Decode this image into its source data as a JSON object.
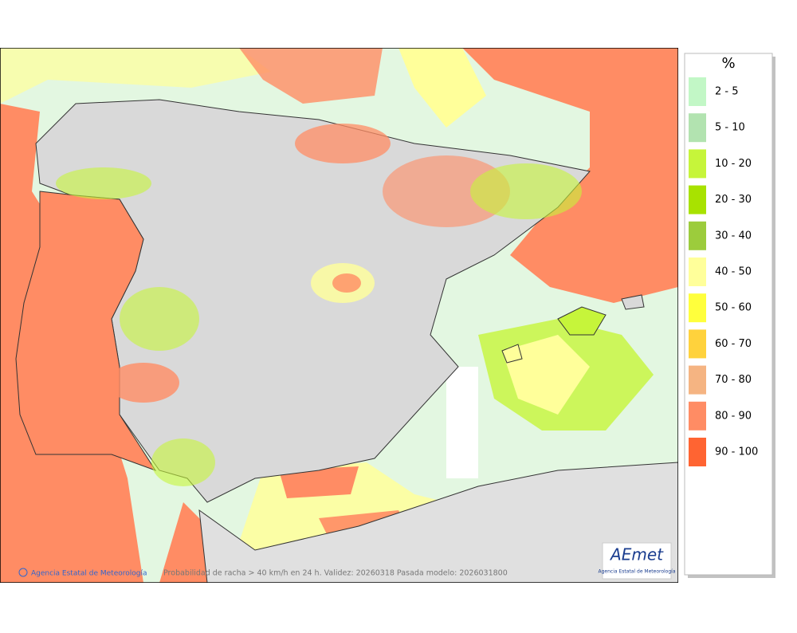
{
  "legend": {
    "title": "%",
    "items": [
      {
        "label": "2 - 5",
        "color": "#c2f7c6"
      },
      {
        "label": "5 - 10",
        "color": "#b2e3b0"
      },
      {
        "label": "10 - 20",
        "color": "#c6f53a"
      },
      {
        "label": "20 - 30",
        "color": "#a8e200"
      },
      {
        "label": "30 - 40",
        "color": "#9ccc3c"
      },
      {
        "label": "40 - 50",
        "color": "#ffff9a"
      },
      {
        "label": "50 - 60",
        "color": "#ffff3c"
      },
      {
        "label": "60 - 70",
        "color": "#ffd23c"
      },
      {
        "label": "70 - 80",
        "color": "#f5b482"
      },
      {
        "label": "80 - 90",
        "color": "#ff8c64"
      },
      {
        "label": "90 - 100",
        "color": "#ff6432"
      }
    ]
  },
  "map": {
    "credit": "Agencia Estatal de Meteorología",
    "caption": "Probabilidad de racha > 40 km/h en 24 h. Validez: 20260318 Pasada modelo: 2026031800",
    "logo": {
      "text": "AEmet",
      "subtitle": "Agencia Estatal de Meteorología"
    }
  }
}
